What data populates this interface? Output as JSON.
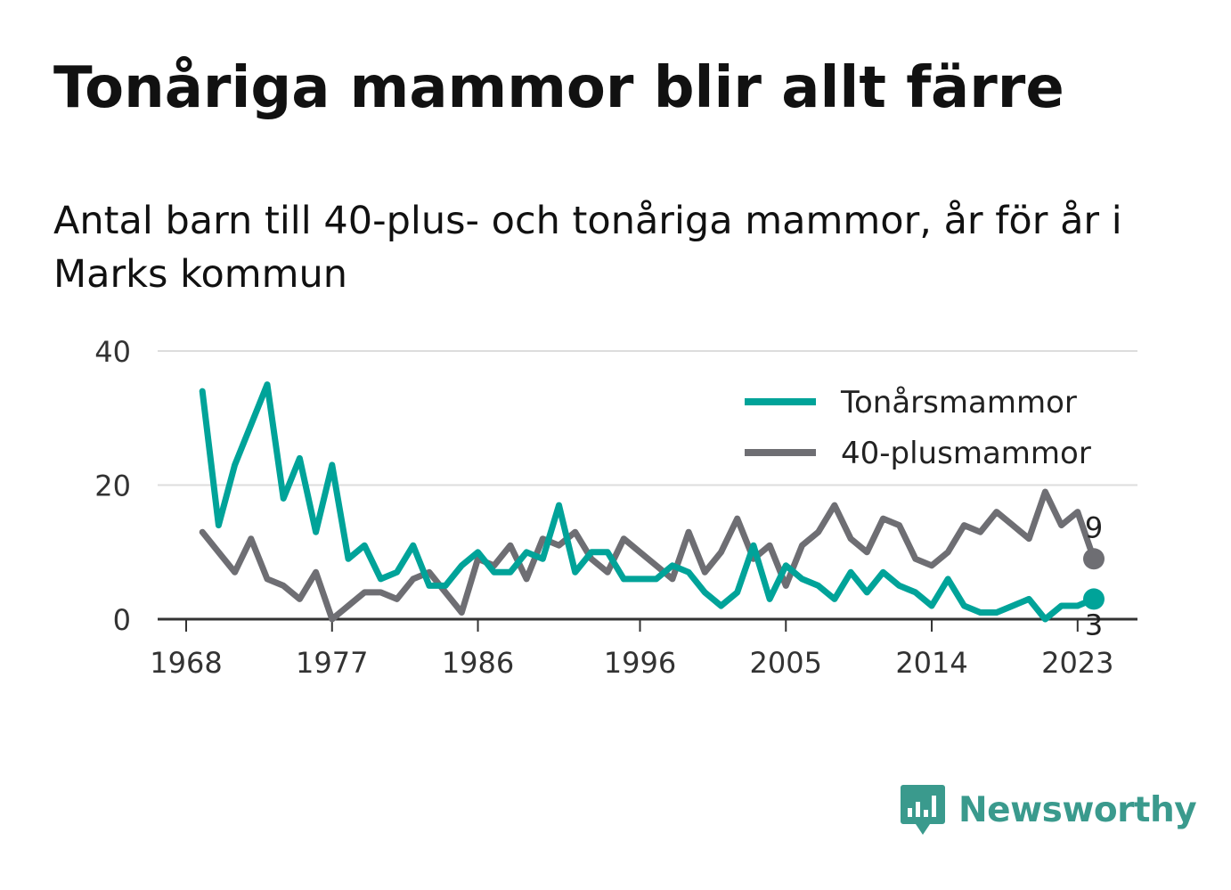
{
  "title": "Tonåriga mammor blir allt färre",
  "subtitle": "Antal barn till 40-plus- och tonåriga mammor, år för år i Marks kommun",
  "brand": {
    "name": "Newsworthy",
    "icon": "newsworthy-logo-icon"
  },
  "chart_data": {
    "type": "line",
    "xlabel": "",
    "ylabel": "",
    "xlim": [
      1968,
      2024
    ],
    "ylim": [
      0,
      40
    ],
    "y_ticks": [
      "0",
      "20",
      "40"
    ],
    "x_ticks": [
      "1968",
      "1977",
      "1986",
      "1996",
      "2005",
      "2014",
      "2023"
    ],
    "grid": true,
    "legend_position": "top-right",
    "x": [
      1969,
      1970,
      1971,
      1972,
      1973,
      1974,
      1975,
      1976,
      1977,
      1978,
      1979,
      1980,
      1981,
      1982,
      1983,
      1984,
      1985,
      1986,
      1987,
      1988,
      1989,
      1990,
      1991,
      1992,
      1993,
      1994,
      1995,
      1996,
      1997,
      1998,
      1999,
      2000,
      2001,
      2002,
      2003,
      2004,
      2005,
      2006,
      2007,
      2008,
      2009,
      2010,
      2011,
      2012,
      2013,
      2014,
      2015,
      2016,
      2017,
      2018,
      2019,
      2020,
      2021,
      2022,
      2023,
      2024
    ],
    "series": [
      {
        "name": "Tonårsmammor",
        "color": "#00a399",
        "end_label": "3",
        "values": [
          34,
          14,
          23,
          29,
          35,
          18,
          24,
          13,
          23,
          9,
          11,
          6,
          7,
          11,
          5,
          5,
          8,
          10,
          7,
          7,
          10,
          9,
          17,
          7,
          10,
          10,
          6,
          6,
          6,
          8,
          7,
          4,
          2,
          4,
          11,
          3,
          8,
          6,
          5,
          3,
          7,
          4,
          7,
          5,
          4,
          2,
          6,
          2,
          1,
          1,
          2,
          3,
          0,
          2,
          2,
          3
        ]
      },
      {
        "name": "40-plusmammor",
        "color": "#6e6e73",
        "end_label": "9",
        "values": [
          13,
          10,
          7,
          12,
          6,
          5,
          3,
          7,
          0,
          2,
          4,
          4,
          3,
          6,
          7,
          4,
          1,
          9,
          8,
          11,
          6,
          12,
          11,
          13,
          9,
          7,
          12,
          10,
          8,
          6,
          13,
          7,
          10,
          15,
          9,
          11,
          5,
          11,
          13,
          17,
          12,
          10,
          15,
          14,
          9,
          8,
          10,
          14,
          13,
          16,
          14,
          12,
          19,
          14,
          16,
          9
        ]
      }
    ]
  }
}
